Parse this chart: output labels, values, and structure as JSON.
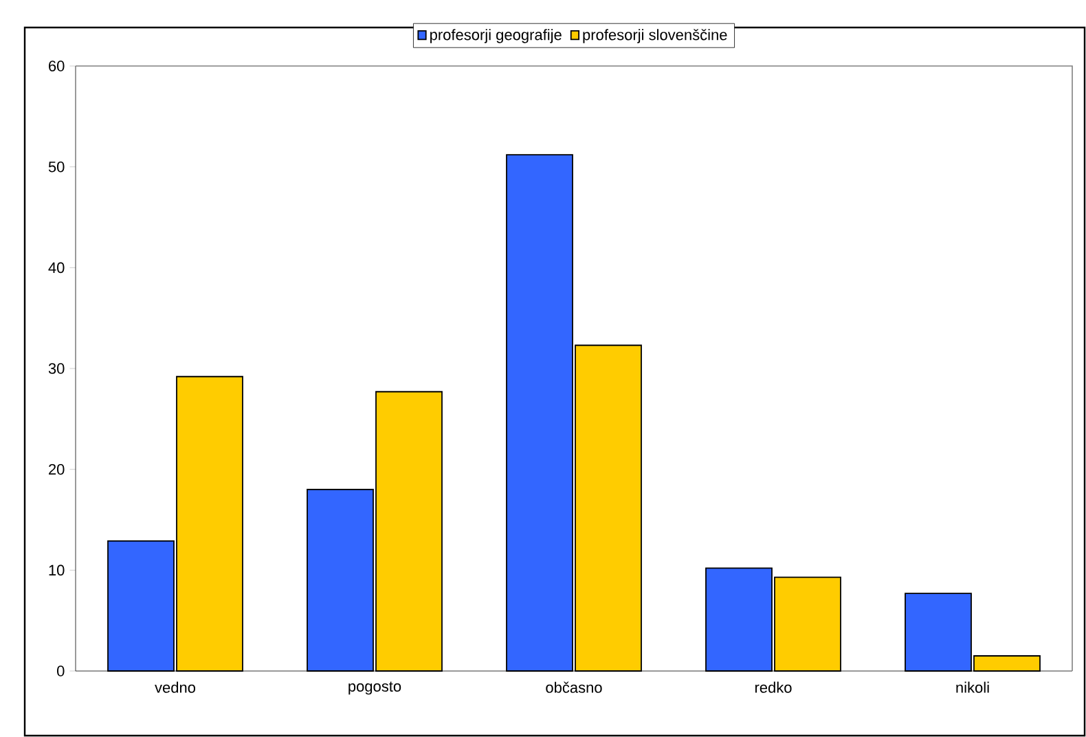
{
  "chart_data": {
    "type": "bar",
    "categories": [
      "vedno",
      "pogosto",
      "občasno",
      "redko",
      "nikoli"
    ],
    "series": [
      {
        "name": "profesorji geografije",
        "color": "#3366ff",
        "values": [
          12.9,
          18.0,
          51.2,
          10.2,
          7.7
        ]
      },
      {
        "name": "profesorji slovenščine",
        "color": "#ffcc00",
        "values": [
          29.2,
          27.7,
          32.3,
          9.3,
          1.5
        ]
      }
    ],
    "ylim": [
      0,
      60
    ],
    "yticks": [
      0,
      10,
      20,
      30,
      40,
      50,
      60
    ],
    "grid": false,
    "legend": "top"
  }
}
